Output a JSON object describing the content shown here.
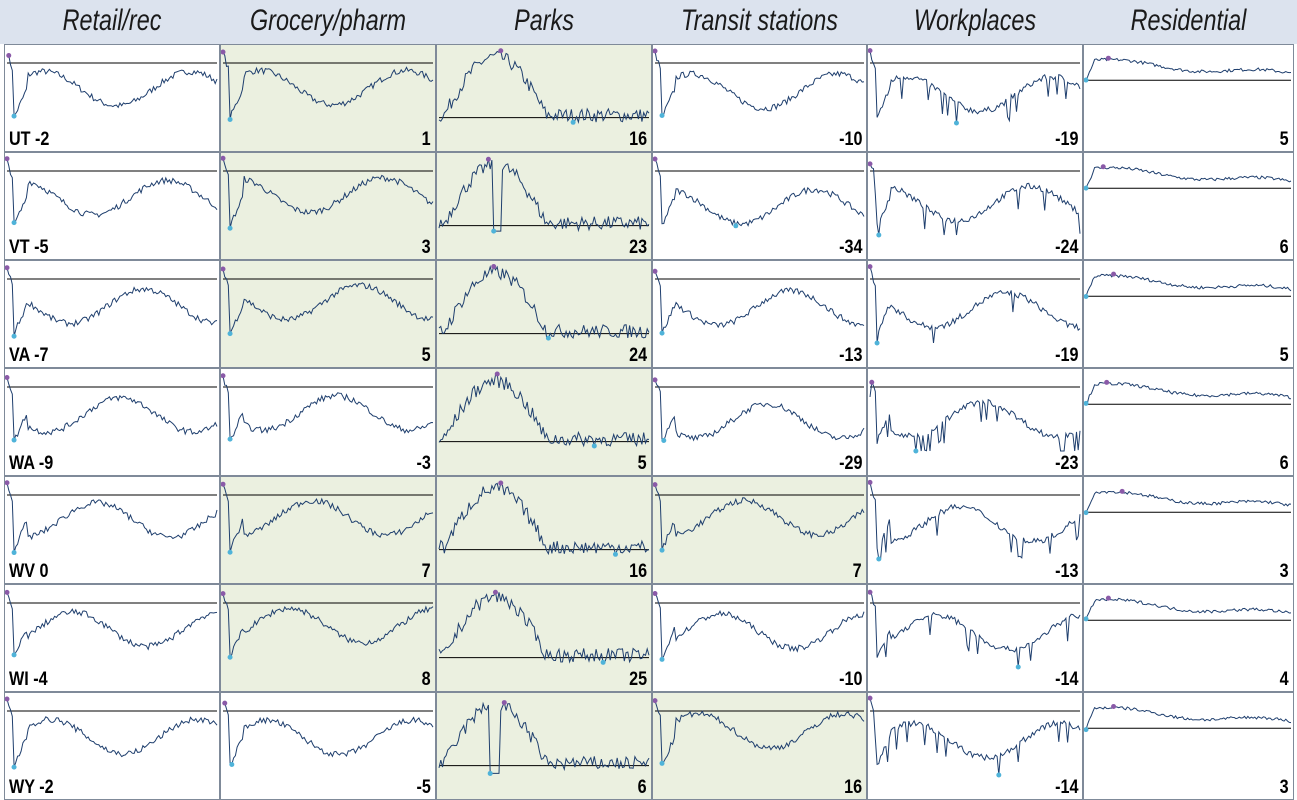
{
  "chart_data": {
    "type": "line",
    "subtype": "small-multiples sparklines",
    "columns": [
      "Retail/rec",
      "Grocery/pharm",
      "Parks",
      "Transit stations",
      "Workplaces",
      "Residential"
    ],
    "states": [
      "UT",
      "VT",
      "VA",
      "WA",
      "WV",
      "WI",
      "WY"
    ],
    "rows": [
      {
        "state": "UT",
        "values": [
          -2,
          1,
          16,
          -10,
          -19,
          5
        ],
        "highlight": [
          false,
          true,
          true,
          false,
          false,
          false
        ]
      },
      {
        "state": "VT",
        "values": [
          -5,
          3,
          23,
          -34,
          -24,
          6
        ],
        "highlight": [
          false,
          true,
          true,
          false,
          false,
          false
        ]
      },
      {
        "state": "VA",
        "values": [
          -7,
          5,
          24,
          -13,
          -19,
          5
        ],
        "highlight": [
          false,
          true,
          true,
          false,
          false,
          false
        ]
      },
      {
        "state": "WA",
        "values": [
          -9,
          -3,
          5,
          -29,
          -23,
          6
        ],
        "highlight": [
          false,
          false,
          true,
          false,
          false,
          false
        ]
      },
      {
        "state": "WV",
        "values": [
          0,
          7,
          16,
          7,
          -13,
          3
        ],
        "highlight": [
          false,
          true,
          true,
          true,
          false,
          false
        ]
      },
      {
        "state": "WI",
        "values": [
          -4,
          8,
          25,
          -10,
          -14,
          4
        ],
        "highlight": [
          false,
          true,
          true,
          false,
          false,
          false
        ]
      },
      {
        "state": "WY",
        "values": [
          -2,
          -5,
          6,
          16,
          -14,
          3
        ],
        "highlight": [
          false,
          false,
          true,
          true,
          false,
          false
        ]
      }
    ],
    "colors": {
      "line": "#1f3f6e",
      "baseline": "#000000",
      "min_marker": "#4fb3d9",
      "max_marker": "#8a5aa8",
      "highlight_bg": "#ebf0e0",
      "header_bg": "#dce3ee"
    }
  }
}
